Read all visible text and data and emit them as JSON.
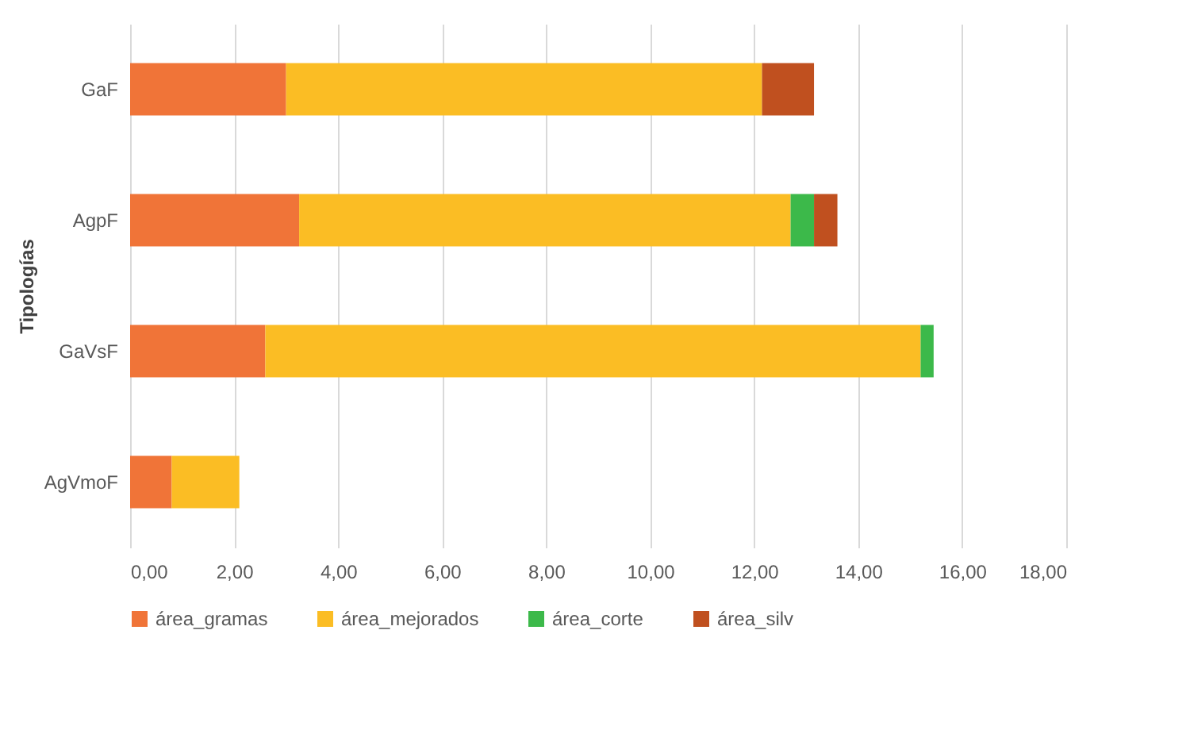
{
  "chart_data": {
    "type": "bar",
    "orientation": "horizontal",
    "stacked": true,
    "ylabel": "Tipologías",
    "categories": [
      "GaF",
      "AgpF",
      "GaVsF",
      "AgVmoF"
    ],
    "series": [
      {
        "name": "área_gramas",
        "color": "#f07438",
        "values": [
          3.0,
          3.25,
          2.6,
          0.8
        ]
      },
      {
        "name": "área_mejorados",
        "color": "#fbbd24",
        "values": [
          9.15,
          9.45,
          12.6,
          1.3
        ]
      },
      {
        "name": "área_corte",
        "color": "#3cb94a",
        "values": [
          0,
          0.45,
          0.25,
          0
        ]
      },
      {
        "name": "área_silv",
        "color": "#c0501f",
        "values": [
          1.0,
          0.45,
          0,
          0
        ]
      }
    ],
    "xlim": [
      0,
      18
    ],
    "xticks": [
      {
        "value": 0,
        "label": "0,00"
      },
      {
        "value": 2,
        "label": "2,00"
      },
      {
        "value": 4,
        "label": "4,00"
      },
      {
        "value": 6,
        "label": "6,00"
      },
      {
        "value": 8,
        "label": "8,00"
      },
      {
        "value": 10,
        "label": "10,00"
      },
      {
        "value": 12,
        "label": "12,00"
      },
      {
        "value": 14,
        "label": "14,00"
      },
      {
        "value": 16,
        "label": "16,00"
      },
      {
        "value": 18,
        "label": "18,00"
      }
    ],
    "grid": "x",
    "legend": "bottom"
  }
}
